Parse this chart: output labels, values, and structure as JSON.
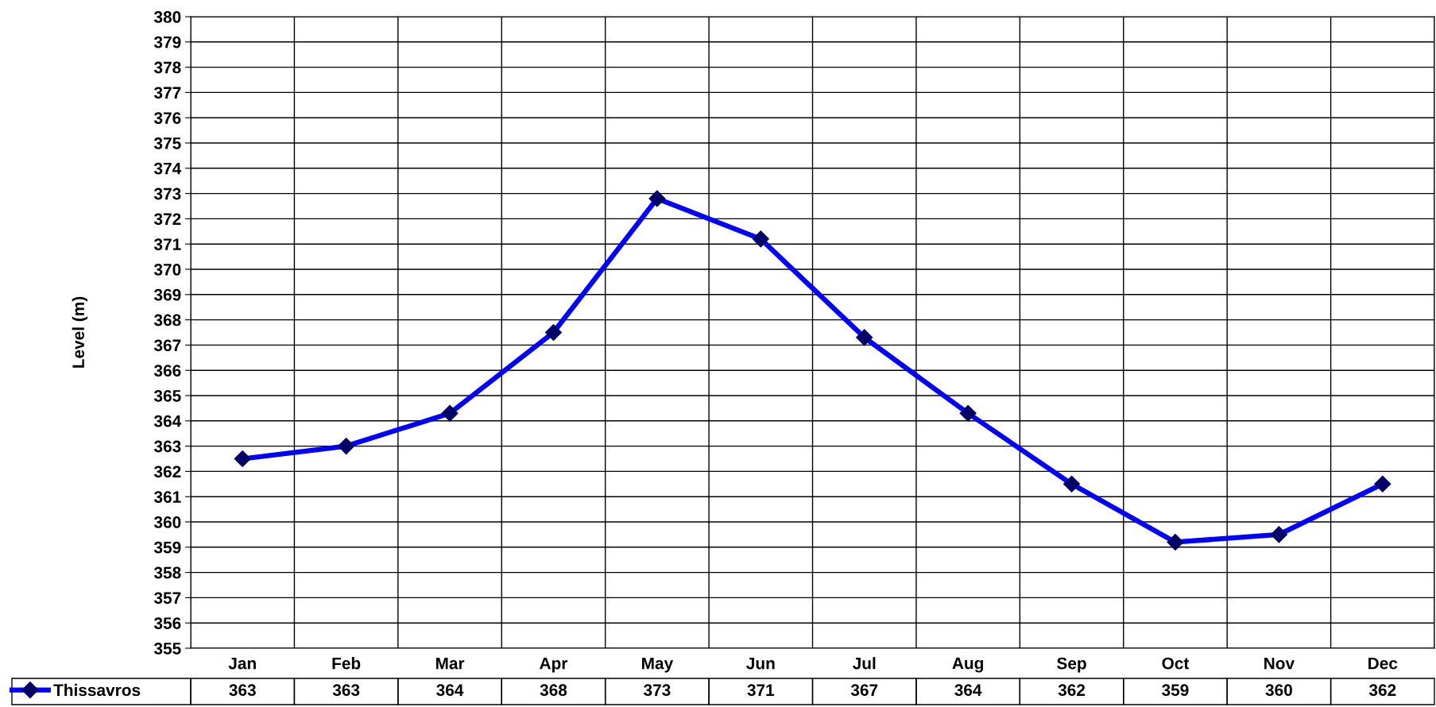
{
  "chart_data": {
    "type": "line",
    "ylabel": "Level (m)",
    "categories": [
      "Jan",
      "Feb",
      "Mar",
      "Apr",
      "May",
      "Jun",
      "Jul",
      "Aug",
      "Sep",
      "Oct",
      "Nov",
      "Dec"
    ],
    "series": [
      {
        "name": "Thissavros",
        "color": "#0000ff",
        "values": [
          362.5,
          363.0,
          364.3,
          367.5,
          372.8,
          371.2,
          367.3,
          364.3,
          361.5,
          359.2,
          359.5,
          361.5
        ],
        "value_labels": [
          "363",
          "363",
          "364",
          "368",
          "373",
          "371",
          "367",
          "364",
          "362",
          "359",
          "360",
          "362"
        ]
      }
    ],
    "ylim": [
      355,
      380
    ],
    "yticks": [
      355,
      356,
      357,
      358,
      359,
      360,
      361,
      362,
      363,
      364,
      365,
      366,
      367,
      368,
      369,
      370,
      371,
      372,
      373,
      374,
      375,
      376,
      377,
      378,
      379,
      380
    ],
    "grid": true,
    "legend": "bottom left",
    "marker": "diamond",
    "line_style": "solid"
  }
}
